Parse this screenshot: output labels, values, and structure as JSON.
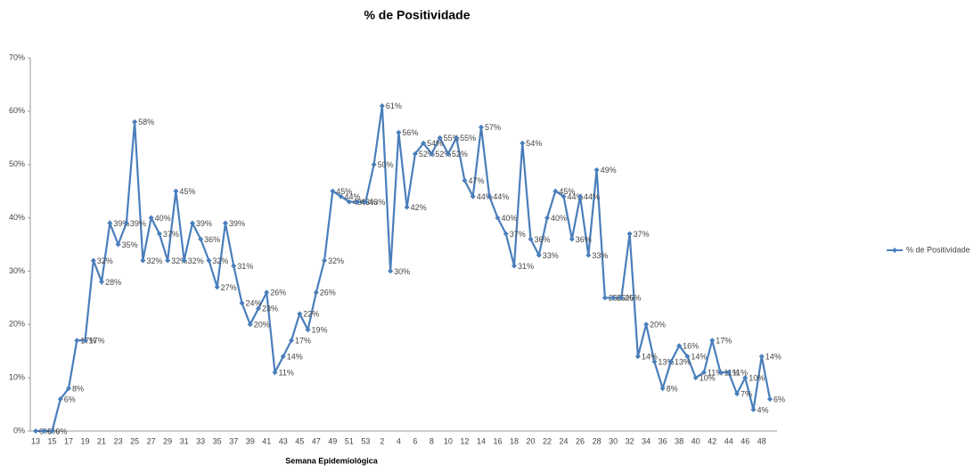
{
  "chart_data": {
    "type": "line",
    "title": "% de Positividade",
    "x_label": "Semana Epidemiológica",
    "categories": [
      "13",
      null,
      "15",
      null,
      "17",
      null,
      "19",
      null,
      "21",
      null,
      "23",
      null,
      "25",
      null,
      "27",
      null,
      "29",
      null,
      "31",
      null,
      "33",
      null,
      "35",
      null,
      "37",
      null,
      "39",
      null,
      "41",
      null,
      "43",
      null,
      "45",
      null,
      "47",
      null,
      "49",
      null,
      "51",
      null,
      "53",
      null,
      "2",
      null,
      "4",
      null,
      "6",
      null,
      "8",
      null,
      "10",
      null,
      "12",
      null,
      "14",
      null,
      "16",
      null,
      "18",
      null,
      "20",
      null,
      "22",
      null,
      "24",
      null,
      "26",
      null,
      "28",
      null,
      "30",
      null,
      "32",
      null,
      "34",
      null,
      "36",
      null,
      "38",
      null,
      "40",
      null,
      "42",
      null,
      "44",
      null,
      "46",
      null,
      "48",
      null
    ],
    "series": [
      {
        "name": "% de Positividade",
        "color": "#4a7ebb",
        "values": [
          0,
          0,
          0,
          6,
          8,
          17,
          17,
          32,
          28,
          39,
          35,
          39,
          58,
          32,
          40,
          37,
          32,
          45,
          32,
          39,
          36,
          32,
          27,
          39,
          31,
          24,
          20,
          23,
          26,
          11,
          14,
          17,
          22,
          19,
          26,
          32,
          45,
          44,
          43,
          43,
          43,
          50,
          61,
          30,
          56,
          42,
          52,
          54,
          52,
          55,
          52,
          55,
          47,
          44,
          57,
          44,
          40,
          37,
          31,
          54,
          36,
          33,
          40,
          45,
          44,
          36,
          44,
          33,
          49,
          25,
          25,
          25,
          37,
          14,
          20,
          13,
          8,
          13,
          16,
          14,
          10,
          11,
          17,
          11,
          11,
          7,
          10,
          4,
          14,
          6
        ],
        "value_labels": [
          "0%",
          "0%",
          "0%",
          "6%",
          "8%",
          "17%",
          "17%",
          "32%",
          "28%",
          "39%",
          "35%",
          "39%",
          "58%",
          "32%",
          "40%",
          "37%",
          "32%",
          "45%",
          "32%",
          "39%",
          "36%",
          "32%",
          "27%",
          "39%",
          "31%",
          "24%",
          "20%",
          "23%",
          "26%",
          "11%",
          "14%",
          "17%",
          "22%",
          "19%",
          "26%",
          "32%",
          "45%",
          "44%",
          "43%",
          "43%",
          "43%",
          "50%",
          "61%",
          "30%",
          "56%",
          "42%",
          "52%",
          "54%",
          "52%",
          "55%",
          "52%",
          "55%",
          "47%",
          "44%",
          "57%",
          "44%",
          "40%",
          "37%",
          "31%",
          "54%",
          "36%",
          "33%",
          "40%",
          "45%",
          "44%",
          "36%",
          "44%",
          "33%",
          "49%",
          "25%",
          "25%",
          "25%",
          "37%",
          "14%",
          "20%",
          "13%",
          "8%",
          "13%",
          "16%",
          "14%",
          "10%",
          "11%",
          "17%",
          "11%",
          "11%",
          "7%",
          "10%",
          "4%",
          "14%",
          "6%"
        ]
      }
    ],
    "ylim": [
      0,
      70
    ],
    "yticks": [
      {
        "value": 0,
        "label": "0%"
      },
      {
        "value": 10,
        "label": "10%"
      },
      {
        "value": 20,
        "label": "20%"
      },
      {
        "value": 30,
        "label": "30%"
      },
      {
        "value": 40,
        "label": "40%"
      },
      {
        "value": 50,
        "label": "50%"
      },
      {
        "value": 60,
        "label": "60%"
      },
      {
        "value": 70,
        "label": "70%"
      }
    ],
    "grid": false,
    "legend": "right"
  }
}
